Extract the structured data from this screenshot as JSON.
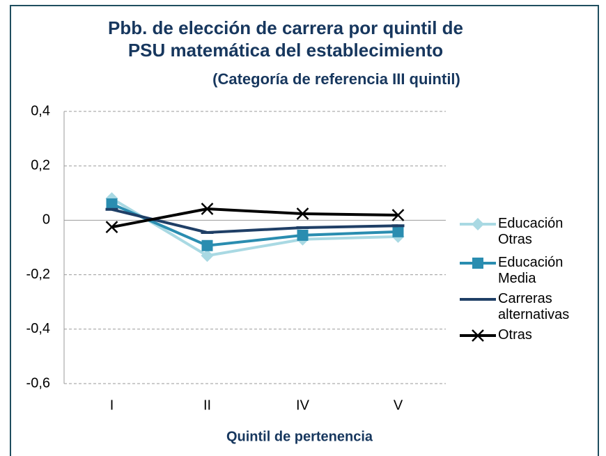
{
  "chart_data": {
    "type": "line",
    "title": "Pbb. de elección de carrera por quintil de PSU matemática del establecimiento",
    "subtitle": "(Categoría de referencia III quintil)",
    "x_label": "Quintil de pertenencia",
    "categories": [
      "I",
      "II",
      "IV",
      "V"
    ],
    "series": [
      {
        "name": "Educación Otras",
        "color": "#a9d9e3",
        "marker": "diamond",
        "values": [
          0.08,
          -0.13,
          -0.07,
          -0.06
        ]
      },
      {
        "name": "Educación Media",
        "color": "#2a8db0",
        "marker": "square",
        "values": [
          0.06,
          -0.093,
          -0.055,
          -0.042
        ]
      },
      {
        "name": "Carreras alternativas",
        "color": "#1f3f66",
        "marker": "dash",
        "values": [
          0.04,
          -0.045,
          -0.027,
          -0.02
        ]
      },
      {
        "name": "Otras",
        "color": "#000000",
        "marker": "x",
        "values": [
          -0.025,
          0.042,
          0.024,
          0.019
        ]
      }
    ],
    "ylim": [
      -0.6,
      0.4
    ],
    "yticks": [
      {
        "value": -0.6,
        "label": "-0,6"
      },
      {
        "value": -0.4,
        "label": "-0,4"
      },
      {
        "value": -0.2,
        "label": "-0,2"
      },
      0,
      {
        "value": 0.2,
        "label": "0,2"
      },
      {
        "value": 0.4,
        "label": "0,4"
      }
    ],
    "grid": true,
    "legend": "right"
  }
}
